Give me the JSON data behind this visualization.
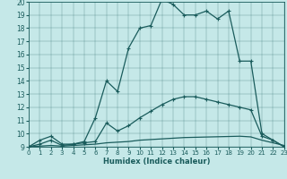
{
  "xlabel": "Humidex (Indice chaleur)",
  "bg_color": "#c5e8e8",
  "line_color": "#1a5c5c",
  "xlim": [
    0,
    23
  ],
  "ylim": [
    9,
    20
  ],
  "xticks": [
    0,
    1,
    2,
    3,
    4,
    5,
    6,
    7,
    8,
    9,
    10,
    11,
    12,
    13,
    14,
    15,
    16,
    17,
    18,
    19,
    20,
    21,
    22,
    23
  ],
  "yticks": [
    9,
    10,
    11,
    12,
    13,
    14,
    15,
    16,
    17,
    18,
    19,
    20
  ],
  "line1_x": [
    0,
    1,
    2,
    3,
    4,
    5,
    6,
    7,
    8,
    9,
    10,
    11,
    12,
    13,
    14,
    15,
    16,
    17,
    18,
    19,
    20,
    21,
    22,
    23
  ],
  "line1_y": [
    9.0,
    9.5,
    9.8,
    9.2,
    9.2,
    9.4,
    11.2,
    14.0,
    13.2,
    16.5,
    18.0,
    18.2,
    20.2,
    19.8,
    19.0,
    19.0,
    19.3,
    18.7,
    19.3,
    15.5,
    15.5,
    10.0,
    9.5,
    9.0
  ],
  "line1_has_marker": true,
  "line2_x": [
    0,
    1,
    2,
    3,
    4,
    5,
    6,
    7,
    8,
    9,
    10,
    11,
    12,
    13,
    14,
    15,
    16,
    17,
    18,
    19,
    20,
    21,
    22,
    23
  ],
  "line2_y": [
    9.0,
    9.2,
    9.5,
    9.1,
    9.2,
    9.3,
    9.4,
    10.8,
    10.2,
    10.6,
    11.2,
    11.7,
    12.2,
    12.6,
    12.8,
    12.8,
    12.6,
    12.4,
    12.2,
    12.0,
    11.8,
    9.8,
    9.5,
    9.0
  ],
  "line2_has_marker": true,
  "line3_x": [
    0,
    1,
    2,
    3,
    4,
    5,
    6,
    7,
    8,
    9,
    10,
    11,
    12,
    13,
    14,
    15,
    16,
    17,
    18,
    19,
    20,
    21,
    22,
    23
  ],
  "line3_y": [
    9.0,
    9.05,
    9.1,
    9.05,
    9.1,
    9.15,
    9.2,
    9.3,
    9.35,
    9.4,
    9.5,
    9.55,
    9.6,
    9.65,
    9.7,
    9.72,
    9.74,
    9.76,
    9.78,
    9.8,
    9.75,
    9.5,
    9.3,
    9.1
  ],
  "line3_has_marker": false
}
